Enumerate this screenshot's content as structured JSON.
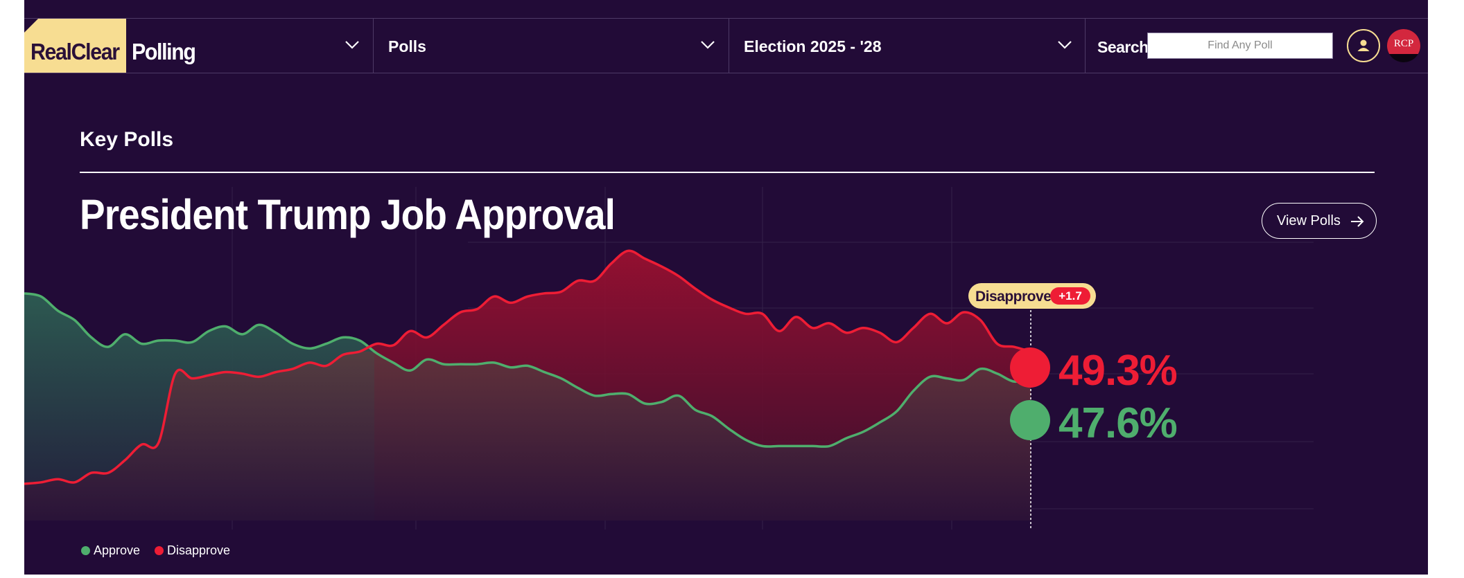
{
  "brand": {
    "logo_part1": "RealClear",
    "logo_part2": "Polling"
  },
  "nav": {
    "items": [
      {
        "label": "Polls"
      },
      {
        "label": "Election 2025 - '28"
      }
    ],
    "search_label": "Search",
    "search_placeholder": "Find Any Poll",
    "rcp_label": "RCP"
  },
  "section": {
    "label": "Key Polls"
  },
  "chart_header": {
    "title": "President Trump Job Approval",
    "view_polls_label": "View Polls"
  },
  "tooltip": {
    "label": "Disapprove",
    "delta": "+1.7"
  },
  "values": {
    "disapprove": "49.3%",
    "approve": "47.6%"
  },
  "colors": {
    "background": "#220b37",
    "approve": "#4fae6d",
    "disapprove": "#ee1d35",
    "accent": "#f7dd92"
  },
  "icons": {
    "dropdown": "chevron-down-icon",
    "user": "user-icon",
    "arrow": "arrow-right-icon"
  },
  "chart_data": {
    "type": "line",
    "title": "President Trump Job Approval",
    "ylim": [
      38,
      58
    ],
    "grid": true,
    "legend_position": "bottom-left",
    "series": [
      {
        "name": "Approve",
        "color": "#4fae6d",
        "values": [
          53.0,
          52.8,
          51.9,
          51.3,
          50.2,
          49.6,
          50.4,
          49.8,
          50.0,
          50.0,
          49.9,
          50.6,
          50.9,
          50.4,
          51.0,
          50.5,
          49.8,
          49.5,
          49.8,
          50.2,
          50.0,
          49.2,
          48.6,
          48.1,
          48.8,
          48.5,
          48.5,
          48.5,
          48.6,
          48.3,
          48.4,
          48.0,
          47.6,
          47.0,
          46.5,
          46.6,
          46.6,
          46.0,
          46.1,
          46.5,
          45.6,
          45.2,
          44.4,
          43.7,
          43.3,
          43.3,
          43.3,
          43.3,
          43.3,
          43.8,
          44.2,
          44.8,
          45.5,
          46.8,
          47.7,
          47.6,
          47.5,
          48.2,
          47.9,
          47.4,
          47.6
        ]
      },
      {
        "name": "Disapprove",
        "color": "#ee1d35",
        "values": [
          40.9,
          41.0,
          41.2,
          41.0,
          41.6,
          41.6,
          42.4,
          43.4,
          43.5,
          47.9,
          47.6,
          47.8,
          48.0,
          47.9,
          47.7,
          48.0,
          48.2,
          48.6,
          48.4,
          49.1,
          49.3,
          49.8,
          49.7,
          50.6,
          50.2,
          51.0,
          51.8,
          52.0,
          52.8,
          52.4,
          52.8,
          53.0,
          53.1,
          53.8,
          53.8,
          54.9,
          55.7,
          55.2,
          54.7,
          54.1,
          53.3,
          52.6,
          52.1,
          51.7,
          51.7,
          50.6,
          51.5,
          50.8,
          51.1,
          50.5,
          50.8,
          50.5,
          49.9,
          50.8,
          51.7,
          51.1,
          51.8,
          51.3,
          49.8,
          49.6,
          49.3
        ]
      }
    ]
  }
}
